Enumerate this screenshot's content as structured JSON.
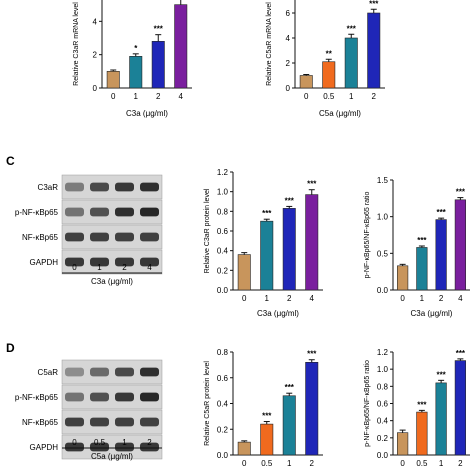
{
  "panels": {
    "c_letter": "C",
    "d_letter": "D"
  },
  "colors": {
    "tan": "#c8955c",
    "teal": "#1b8197",
    "blue": "#1f26b8",
    "purple": "#7a1f9e",
    "orange": "#f06a1e"
  },
  "chart_data": [
    {
      "type": "bar",
      "panel": "top-left",
      "categories": [
        "0",
        "1",
        "2",
        "4"
      ],
      "values": [
        1.0,
        1.9,
        2.8,
        5.0
      ],
      "errors": [
        0.08,
        0.15,
        0.4,
        0.5
      ],
      "significance": [
        "",
        "*",
        "***",
        ""
      ],
      "colors": [
        "#c8955c",
        "#1b8197",
        "#1f26b8",
        "#7a1f9e"
      ],
      "ylabel": "Relative C3aR mRNA level",
      "xlabel": "C3a (μg/ml)",
      "ylim": [
        0,
        6
      ],
      "yticks": [
        "0",
        "2",
        "4"
      ]
    },
    {
      "type": "bar",
      "panel": "top-right",
      "categories": [
        "0",
        "0.5",
        "1",
        "2"
      ],
      "values": [
        1.0,
        2.1,
        4.0,
        6.0
      ],
      "errors": [
        0.08,
        0.2,
        0.3,
        0.3
      ],
      "significance": [
        "",
        "**",
        "***",
        "***"
      ],
      "colors": [
        "#c8955c",
        "#f06a1e",
        "#1b8197",
        "#1f26b8"
      ],
      "ylabel": "Relative C5aR mRNA level",
      "xlabel": "C5a (μg/ml)",
      "ylim": [
        0,
        8
      ],
      "yticks": [
        "0",
        "2",
        "4",
        "6"
      ]
    },
    {
      "type": "bar",
      "panel": "C-middle",
      "categories": [
        "0",
        "1",
        "2",
        "4"
      ],
      "values": [
        0.36,
        0.7,
        0.83,
        0.97
      ],
      "errors": [
        0.02,
        0.02,
        0.02,
        0.05
      ],
      "significance": [
        "",
        "***",
        "***",
        "***"
      ],
      "colors": [
        "#c8955c",
        "#1b8197",
        "#1f26b8",
        "#7a1f9e"
      ],
      "ylabel": "Relative C3aR protein level",
      "xlabel": "C3a (μg/ml)",
      "ylim": [
        0,
        1.2
      ],
      "yticks": [
        "0.0",
        "0.2",
        "0.4",
        "0.6",
        "0.8",
        "1.0",
        "1.2"
      ]
    },
    {
      "type": "bar",
      "panel": "C-right",
      "categories": [
        "0",
        "1",
        "2",
        "4"
      ],
      "values": [
        0.33,
        0.58,
        0.96,
        1.23
      ],
      "errors": [
        0.02,
        0.02,
        0.02,
        0.03
      ],
      "significance": [
        "",
        "***",
        "***",
        "***"
      ],
      "colors": [
        "#c8955c",
        "#1b8197",
        "#1f26b8",
        "#7a1f9e"
      ],
      "ylabel": "p-NF-κBp65/NF-κBp65 ratio",
      "xlabel": "C3a (μg/ml)",
      "ylim": [
        0,
        1.5
      ],
      "yticks": [
        "0.0",
        "0.5",
        "1.0",
        "1.5"
      ]
    },
    {
      "type": "bar",
      "panel": "D-middle",
      "categories": [
        "0",
        "0.5",
        "1",
        "2"
      ],
      "values": [
        0.1,
        0.24,
        0.46,
        0.72
      ],
      "errors": [
        0.01,
        0.02,
        0.02,
        0.02
      ],
      "significance": [
        "",
        "***",
        "***",
        "***"
      ],
      "colors": [
        "#c8955c",
        "#f06a1e",
        "#1b8197",
        "#1f26b8"
      ],
      "ylabel": "Relative C5aR protein level",
      "xlabel": "C5a (μg/ml)",
      "ylim": [
        0,
        0.8
      ],
      "yticks": [
        "0.0",
        "0.2",
        "0.4",
        "0.6",
        "0.8"
      ]
    },
    {
      "type": "bar",
      "panel": "D-right",
      "categories": [
        "0",
        "0.5",
        "1",
        "2"
      ],
      "values": [
        0.26,
        0.5,
        0.84,
        1.1
      ],
      "errors": [
        0.03,
        0.02,
        0.03,
        0.02
      ],
      "significance": [
        "",
        "***",
        "***",
        "***"
      ],
      "colors": [
        "#c8955c",
        "#f06a1e",
        "#1b8197",
        "#1f26b8"
      ],
      "ylabel": "p-NF-κBp65/NF-κBp65 ratio",
      "xlabel": "C5a (μg/ml)",
      "ylim": [
        0,
        1.2
      ],
      "yticks": [
        "0.0",
        "0.2",
        "0.4",
        "0.6",
        "0.8",
        "1.0",
        "1.2"
      ]
    }
  ],
  "blots": [
    {
      "panel": "C",
      "rows": [
        "C3aR",
        "p-NF-κBp65",
        "NF-κBp65",
        "GAPDH"
      ],
      "lanes": [
        "0",
        "1",
        "2",
        "4"
      ],
      "xlabel": "C3a (μg/ml)",
      "intensity": [
        [
          0.45,
          0.75,
          0.85,
          0.9
        ],
        [
          0.5,
          0.7,
          0.9,
          0.95
        ],
        [
          0.8,
          0.8,
          0.8,
          0.8
        ],
        [
          0.85,
          0.85,
          0.85,
          0.85
        ]
      ]
    },
    {
      "panel": "D",
      "rows": [
        "C5aR",
        "p-NF-κBp65",
        "NF-κBp65",
        "GAPDH"
      ],
      "lanes": [
        "0",
        "0.5",
        "1",
        "2"
      ],
      "xlabel": "C5a (μg/ml)",
      "intensity": [
        [
          0.35,
          0.55,
          0.75,
          0.9
        ],
        [
          0.5,
          0.7,
          0.85,
          0.95
        ],
        [
          0.8,
          0.8,
          0.8,
          0.8
        ],
        [
          0.85,
          0.85,
          0.85,
          0.85
        ]
      ]
    }
  ]
}
